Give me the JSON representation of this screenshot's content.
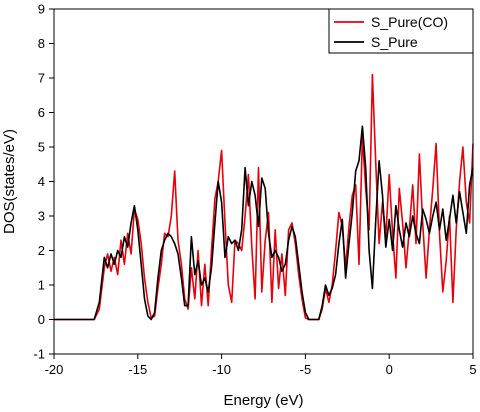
{
  "chart_data": {
    "type": "line",
    "xlabel": "Energy (eV)",
    "ylabel": "DOS(states/eV)",
    "xlim": [
      -20,
      5
    ],
    "ylim": [
      -1,
      9
    ],
    "x_ticks": [
      "-20",
      "-15",
      "-10",
      "-5",
      "0",
      "5"
    ],
    "y_ticks": [
      "-1",
      "0",
      "1",
      "2",
      "3",
      "4",
      "5",
      "6",
      "7",
      "8",
      "9"
    ],
    "grid": false,
    "legend_position": "top-right",
    "series": [
      {
        "name": "S_Pure(CO)",
        "color": "#e8000b",
        "points": [
          [
            -20.0,
            0.0
          ],
          [
            -17.6,
            0.0
          ],
          [
            -17.3,
            0.3
          ],
          [
            -17.0,
            1.5
          ],
          [
            -16.8,
            1.9
          ],
          [
            -16.6,
            1.4
          ],
          [
            -16.4,
            1.8
          ],
          [
            -16.2,
            1.3
          ],
          [
            -16.0,
            2.3
          ],
          [
            -15.8,
            1.6
          ],
          [
            -15.6,
            2.5
          ],
          [
            -15.4,
            1.9
          ],
          [
            -15.2,
            3.2
          ],
          [
            -15.0,
            2.9
          ],
          [
            -14.8,
            2.2
          ],
          [
            -14.6,
            1.2
          ],
          [
            -14.4,
            0.5
          ],
          [
            -14.2,
            0.05
          ],
          [
            -14.0,
            0.1
          ],
          [
            -13.8,
            0.9
          ],
          [
            -13.6,
            1.6
          ],
          [
            -13.4,
            2.5
          ],
          [
            -13.2,
            2.4
          ],
          [
            -13.0,
            3.0
          ],
          [
            -12.8,
            4.3
          ],
          [
            -12.6,
            2.3
          ],
          [
            -12.4,
            1.6
          ],
          [
            -12.2,
            0.6
          ],
          [
            -12.0,
            0.3
          ],
          [
            -11.8,
            1.5
          ],
          [
            -11.6,
            0.6
          ],
          [
            -11.4,
            2.0
          ],
          [
            -11.2,
            0.4
          ],
          [
            -11.0,
            1.6
          ],
          [
            -10.8,
            0.4
          ],
          [
            -10.6,
            2.0
          ],
          [
            -10.4,
            3.5
          ],
          [
            -10.2,
            4.0
          ],
          [
            -10.0,
            4.9
          ],
          [
            -9.8,
            2.8
          ],
          [
            -9.6,
            1.0
          ],
          [
            -9.4,
            0.5
          ],
          [
            -9.2,
            2.3
          ],
          [
            -9.0,
            2.2
          ],
          [
            -8.8,
            2.0
          ],
          [
            -8.6,
            3.0
          ],
          [
            -8.4,
            4.2
          ],
          [
            -8.2,
            2.1
          ],
          [
            -8.0,
            0.6
          ],
          [
            -7.8,
            4.4
          ],
          [
            -7.6,
            0.8
          ],
          [
            -7.4,
            2.3
          ],
          [
            -7.2,
            3.1
          ],
          [
            -7.0,
            0.5
          ],
          [
            -6.8,
            2.6
          ],
          [
            -6.6,
            0.9
          ],
          [
            -6.4,
            1.9
          ],
          [
            -6.2,
            0.7
          ],
          [
            -6.0,
            2.6
          ],
          [
            -5.8,
            2.8
          ],
          [
            -5.6,
            2.2
          ],
          [
            -5.4,
            1.3
          ],
          [
            -5.2,
            0.6
          ],
          [
            -5.0,
            0.05
          ],
          [
            -4.8,
            0.0
          ],
          [
            -4.2,
            0.0
          ],
          [
            -4.0,
            0.3
          ],
          [
            -3.8,
            0.9
          ],
          [
            -3.6,
            0.5
          ],
          [
            -3.4,
            1.0
          ],
          [
            -3.2,
            2.0
          ],
          [
            -3.0,
            3.1
          ],
          [
            -2.8,
            2.7
          ],
          [
            -2.6,
            1.5
          ],
          [
            -2.4,
            2.7
          ],
          [
            -2.2,
            3.6
          ],
          [
            -2.0,
            3.9
          ],
          [
            -1.8,
            1.6
          ],
          [
            -1.6,
            5.3
          ],
          [
            -1.4,
            3.8
          ],
          [
            -1.2,
            2.6
          ],
          [
            -1.0,
            7.1
          ],
          [
            -0.8,
            4.5
          ],
          [
            -0.6,
            2.2
          ],
          [
            -0.4,
            3.4
          ],
          [
            -0.2,
            2.4
          ],
          [
            0.0,
            4.2
          ],
          [
            0.2,
            2.5
          ],
          [
            0.4,
            1.2
          ],
          [
            0.6,
            3.8
          ],
          [
            0.8,
            2.8
          ],
          [
            1.0,
            1.5
          ],
          [
            1.2,
            2.6
          ],
          [
            1.4,
            3.9
          ],
          [
            1.6,
            2.2
          ],
          [
            1.8,
            4.8
          ],
          [
            2.0,
            2.8
          ],
          [
            2.2,
            1.2
          ],
          [
            2.4,
            2.6
          ],
          [
            2.6,
            3.8
          ],
          [
            2.8,
            5.1
          ],
          [
            3.0,
            2.5
          ],
          [
            3.2,
            0.8
          ],
          [
            3.4,
            1.7
          ],
          [
            3.6,
            3.0
          ],
          [
            3.8,
            0.5
          ],
          [
            4.0,
            2.6
          ],
          [
            4.2,
            4.0
          ],
          [
            4.4,
            5.0
          ],
          [
            4.6,
            3.4
          ],
          [
            4.8,
            2.8
          ],
          [
            5.0,
            5.1
          ]
        ]
      },
      {
        "name": "S_Pure",
        "color": "#000000",
        "points": [
          [
            -20.0,
            0.0
          ],
          [
            -17.6,
            0.0
          ],
          [
            -17.3,
            0.5
          ],
          [
            -17.0,
            1.8
          ],
          [
            -16.8,
            1.5
          ],
          [
            -16.6,
            1.9
          ],
          [
            -16.4,
            1.6
          ],
          [
            -16.2,
            2.0
          ],
          [
            -16.0,
            1.8
          ],
          [
            -15.8,
            2.4
          ],
          [
            -15.6,
            2.1
          ],
          [
            -15.4,
            2.8
          ],
          [
            -15.2,
            3.3
          ],
          [
            -15.0,
            2.6
          ],
          [
            -14.8,
            1.6
          ],
          [
            -14.6,
            0.6
          ],
          [
            -14.4,
            0.1
          ],
          [
            -14.2,
            0.0
          ],
          [
            -14.0,
            0.2
          ],
          [
            -13.8,
            1.2
          ],
          [
            -13.6,
            2.0
          ],
          [
            -13.4,
            2.3
          ],
          [
            -13.2,
            2.5
          ],
          [
            -13.0,
            2.4
          ],
          [
            -12.8,
            2.2
          ],
          [
            -12.6,
            1.9
          ],
          [
            -12.4,
            1.2
          ],
          [
            -12.2,
            0.4
          ],
          [
            -12.0,
            0.4
          ],
          [
            -11.8,
            2.4
          ],
          [
            -11.6,
            1.3
          ],
          [
            -11.4,
            1.7
          ],
          [
            -11.2,
            1.0
          ],
          [
            -11.0,
            1.2
          ],
          [
            -10.8,
            0.8
          ],
          [
            -10.6,
            1.5
          ],
          [
            -10.4,
            2.8
          ],
          [
            -10.2,
            4.0
          ],
          [
            -10.0,
            3.4
          ],
          [
            -9.8,
            1.8
          ],
          [
            -9.6,
            2.4
          ],
          [
            -9.4,
            2.2
          ],
          [
            -9.2,
            2.3
          ],
          [
            -9.0,
            2.0
          ],
          [
            -8.8,
            2.6
          ],
          [
            -8.6,
            4.4
          ],
          [
            -8.4,
            3.3
          ],
          [
            -8.2,
            4.0
          ],
          [
            -8.0,
            3.6
          ],
          [
            -7.8,
            2.7
          ],
          [
            -7.6,
            4.1
          ],
          [
            -7.4,
            3.8
          ],
          [
            -7.2,
            2.5
          ],
          [
            -7.0,
            1.8
          ],
          [
            -6.8,
            2.0
          ],
          [
            -6.6,
            1.8
          ],
          [
            -6.4,
            1.4
          ],
          [
            -6.2,
            1.6
          ],
          [
            -6.0,
            2.3
          ],
          [
            -5.8,
            2.7
          ],
          [
            -5.6,
            2.4
          ],
          [
            -5.4,
            1.6
          ],
          [
            -5.2,
            0.8
          ],
          [
            -5.0,
            0.2
          ],
          [
            -4.8,
            0.0
          ],
          [
            -4.2,
            0.0
          ],
          [
            -4.0,
            0.4
          ],
          [
            -3.8,
            1.0
          ],
          [
            -3.6,
            0.7
          ],
          [
            -3.4,
            0.9
          ],
          [
            -3.2,
            1.3
          ],
          [
            -3.0,
            2.2
          ],
          [
            -2.8,
            2.9
          ],
          [
            -2.6,
            1.2
          ],
          [
            -2.4,
            2.2
          ],
          [
            -2.2,
            3.1
          ],
          [
            -2.0,
            4.3
          ],
          [
            -1.8,
            4.6
          ],
          [
            -1.6,
            5.6
          ],
          [
            -1.4,
            4.4
          ],
          [
            -1.2,
            2.0
          ],
          [
            -1.0,
            0.9
          ],
          [
            -0.8,
            2.9
          ],
          [
            -0.6,
            4.6
          ],
          [
            -0.4,
            3.6
          ],
          [
            -0.2,
            2.1
          ],
          [
            0.0,
            2.9
          ],
          [
            0.2,
            2.0
          ],
          [
            0.4,
            3.3
          ],
          [
            0.6,
            2.6
          ],
          [
            0.8,
            2.1
          ],
          [
            1.0,
            2.8
          ],
          [
            1.2,
            2.4
          ],
          [
            1.4,
            3.0
          ],
          [
            1.6,
            2.5
          ],
          [
            1.8,
            2.2
          ],
          [
            2.0,
            3.2
          ],
          [
            2.2,
            2.9
          ],
          [
            2.4,
            2.5
          ],
          [
            2.6,
            3.0
          ],
          [
            2.8,
            3.4
          ],
          [
            3.0,
            2.6
          ],
          [
            3.2,
            3.2
          ],
          [
            3.4,
            2.3
          ],
          [
            3.6,
            2.9
          ],
          [
            3.8,
            3.6
          ],
          [
            4.0,
            2.8
          ],
          [
            4.2,
            3.7
          ],
          [
            4.4,
            3.1
          ],
          [
            4.6,
            2.5
          ],
          [
            4.8,
            3.9
          ],
          [
            5.0,
            4.4
          ]
        ]
      }
    ]
  }
}
